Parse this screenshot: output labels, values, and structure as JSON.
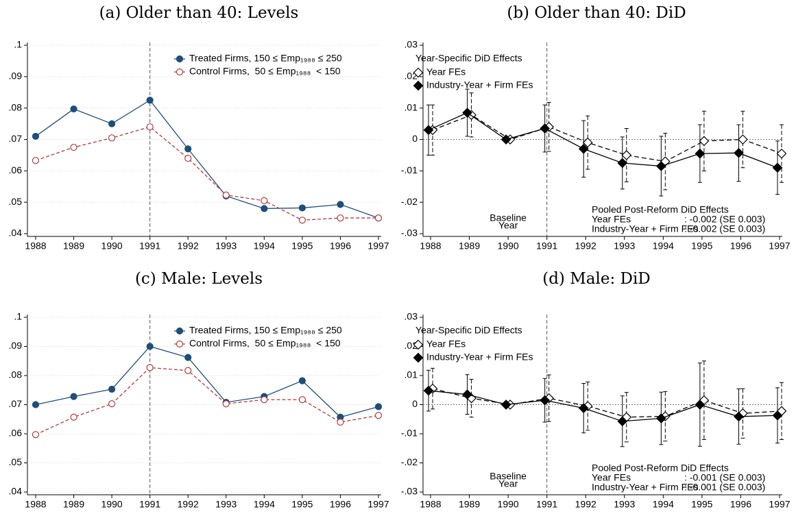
{
  "chart_data": [
    {
      "type": "line",
      "title": "(a) Older than 40: Levels",
      "x": [
        1988,
        1989,
        1990,
        1991,
        1992,
        1993,
        1994,
        1995,
        1996,
        1997
      ],
      "xlim": [
        1988,
        1997
      ],
      "xticks": [
        1988,
        1989,
        1990,
        1991,
        1992,
        1993,
        1994,
        1995,
        1996,
        1997
      ],
      "ylim": [
        0.04,
        0.1
      ],
      "yticks": [
        {
          "value": 0.04,
          "label": ".04"
        },
        {
          "value": 0.05,
          "label": ".05"
        },
        {
          "value": 0.06,
          "label": ".06"
        },
        {
          "value": 0.07,
          "label": ".07"
        },
        {
          "value": 0.08,
          "label": ".08"
        },
        {
          "value": 0.09,
          "label": ".09"
        },
        {
          "value": 0.1,
          "label": ".1"
        }
      ],
      "grid": true,
      "vline": 1991,
      "legend": "upper right",
      "series": [
        {
          "name": "Treated Firms, 150 ≤ Emp₁₉₈₈ ≤ 250",
          "color": "#1f4e79",
          "marker": "circle",
          "filled": true,
          "dashed": false,
          "values": [
            0.071,
            0.0797,
            0.075,
            0.0825,
            0.067,
            0.052,
            0.048,
            0.0482,
            0.0493,
            0.045
          ]
        },
        {
          "name": "Control Firms,  50 ≤ Emp₁₉₈₈  < 150",
          "color": "#b03a3a",
          "marker": "circle",
          "filled": false,
          "dashed": true,
          "values": [
            0.0633,
            0.0675,
            0.0705,
            0.074,
            0.064,
            0.0523,
            0.0505,
            0.0443,
            0.045,
            0.045
          ]
        }
      ]
    },
    {
      "type": "errorbar",
      "title": "(b) Older than 40: DiD",
      "x": [
        1988,
        1989,
        1990,
        1991,
        1992,
        1993,
        1994,
        1995,
        1996,
        1997
      ],
      "xlim": [
        1988,
        1997
      ],
      "xticks": [
        1988,
        1989,
        1990,
        1991,
        1992,
        1993,
        1994,
        1995,
        1996,
        1997
      ],
      "ylim": [
        -0.03,
        0.03
      ],
      "yticks": [
        {
          "value": -0.03,
          "label": "-.03"
        },
        {
          "value": -0.02,
          "label": "-.02"
        },
        {
          "value": -0.01,
          "label": "-.01"
        },
        0,
        {
          "value": 0.01,
          "label": ".01"
        },
        {
          "value": 0.02,
          "label": ".02"
        },
        {
          "value": 0.03,
          "label": ".03"
        }
      ],
      "grid": false,
      "vline": 1991,
      "hline": 0,
      "legend": "upper left",
      "legend_title": "Year-Specific DiD Effects",
      "baseline_label": [
        "Baseline",
        "Year"
      ],
      "baseline_x": 1990,
      "pooled_box": {
        "title": "Pooled Post-Reform DiD Effects",
        "rows": [
          [
            "Year FEs",
            ": -0.002 (SE 0.003)"
          ],
          [
            "Industry-Year + Firm FEs",
            ": -0.002 (SE 0.003)"
          ]
        ]
      },
      "series": [
        {
          "name": "Year FEs",
          "color": "#000000",
          "marker": "diamond",
          "filled": false,
          "dashed": true,
          "values": [
            0.003,
            0.0078,
            0,
            0.004,
            -0.001,
            -0.005,
            -0.007,
            -0.0005,
            0,
            -0.0045
          ],
          "errors": [
            0.008,
            0.007,
            0,
            0.0078,
            0.0085,
            0.0085,
            0.009,
            0.0095,
            0.009,
            0.0092
          ]
        },
        {
          "name": "Industry-Year + Firm FEs",
          "color": "#000000",
          "marker": "diamond",
          "filled": true,
          "dashed": false,
          "values": [
            0.003,
            0.0085,
            0,
            0.0035,
            -0.003,
            -0.0075,
            -0.0085,
            -0.0045,
            -0.0043,
            -0.009
          ],
          "errors": [
            0.008,
            0.0075,
            0,
            0.0075,
            0.009,
            0.0083,
            0.0095,
            0.0092,
            0.009,
            0.0085
          ]
        }
      ]
    },
    {
      "type": "line",
      "title": "(c) Male: Levels",
      "x": [
        1988,
        1989,
        1990,
        1991,
        1992,
        1993,
        1994,
        1995,
        1996,
        1997
      ],
      "xlim": [
        1988,
        1997
      ],
      "xticks": [
        1988,
        1989,
        1990,
        1991,
        1992,
        1993,
        1994,
        1995,
        1996,
        1997
      ],
      "ylim": [
        0.04,
        0.1
      ],
      "yticks": [
        {
          "value": 0.04,
          "label": ".04"
        },
        {
          "value": 0.05,
          "label": ".05"
        },
        {
          "value": 0.06,
          "label": ".06"
        },
        {
          "value": 0.07,
          "label": ".07"
        },
        {
          "value": 0.08,
          "label": ".08"
        },
        {
          "value": 0.09,
          "label": ".09"
        },
        {
          "value": 0.1,
          "label": ".1"
        }
      ],
      "grid": true,
      "vline": 1991,
      "legend": "upper right",
      "series": [
        {
          "name": "Treated Firms, 150 ≤ Emp₁₉₈₈ ≤ 250",
          "color": "#1f4e79",
          "marker": "circle",
          "filled": true,
          "dashed": false,
          "values": [
            0.07,
            0.0728,
            0.0753,
            0.09,
            0.0862,
            0.0708,
            0.0728,
            0.0782,
            0.0657,
            0.0693
          ]
        },
        {
          "name": "Control Firms,  50 ≤ Emp₁₉₈₈  < 150",
          "color": "#b03a3a",
          "marker": "circle",
          "filled": false,
          "dashed": true,
          "values": [
            0.0597,
            0.0657,
            0.0703,
            0.0827,
            0.0817,
            0.0703,
            0.0717,
            0.0717,
            0.064,
            0.0663
          ]
        }
      ]
    },
    {
      "type": "errorbar",
      "title": "(d) Male: DiD",
      "x": [
        1988,
        1989,
        1990,
        1991,
        1992,
        1993,
        1994,
        1995,
        1996,
        1997
      ],
      "xlim": [
        1988,
        1997
      ],
      "xticks": [
        1988,
        1989,
        1990,
        1991,
        1992,
        1993,
        1994,
        1995,
        1996,
        1997
      ],
      "ylim": [
        -0.03,
        0.03
      ],
      "yticks": [
        {
          "value": -0.03,
          "label": "-.03"
        },
        {
          "value": -0.02,
          "label": "-.02"
        },
        {
          "value": -0.01,
          "label": "-.01"
        },
        0,
        {
          "value": 0.01,
          "label": ".01"
        },
        {
          "value": 0.02,
          "label": ".02"
        },
        {
          "value": 0.03,
          "label": ".03"
        }
      ],
      "grid": false,
      "vline": 1991,
      "hline": 0,
      "legend": "upper left",
      "legend_title": "Year-Specific DiD Effects",
      "baseline_label": [
        "Baseline",
        "Year"
      ],
      "baseline_x": 1990,
      "pooled_box": {
        "title": "Pooled Post-Reform DiD Effects",
        "rows": [
          [
            "Year FEs",
            ": -0.001 (SE 0.003)"
          ],
          [
            "Industry-Year + Firm FEs",
            ": -0.001 (SE 0.003)"
          ]
        ]
      },
      "series": [
        {
          "name": "Year FEs",
          "color": "#000000",
          "marker": "diamond",
          "filled": false,
          "dashed": true,
          "values": [
            0.0055,
            0.0022,
            0,
            0.0022,
            -0.0005,
            -0.0043,
            -0.004,
            0.0015,
            -0.003,
            -0.0022
          ],
          "errors": [
            0.007,
            0.0065,
            0,
            0.008,
            0.0083,
            0.0085,
            0.0085,
            0.0135,
            0.0085,
            0.0098
          ]
        },
        {
          "name": "Industry-Year + Firm FEs",
          "color": "#000000",
          "marker": "diamond",
          "filled": true,
          "dashed": false,
          "values": [
            0.0048,
            0.0035,
            0,
            0.0015,
            -0.0012,
            -0.0057,
            -0.0047,
            0,
            -0.0041,
            -0.0037
          ],
          "errors": [
            0.007,
            0.0068,
            0,
            0.0075,
            0.0085,
            0.0087,
            0.009,
            0.0143,
            0.0095,
            0.0095
          ]
        }
      ]
    }
  ]
}
